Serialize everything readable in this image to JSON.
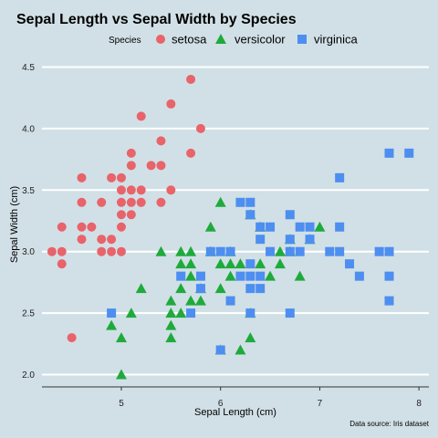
{
  "chart_data": {
    "type": "scatter",
    "title": "Sepal Length vs Sepal Width by Species",
    "xlabel": "Sepal Length (cm)",
    "ylabel": "Sepal Width (cm)",
    "caption": "Data source: Iris dataset",
    "legend_title": "Species",
    "legend_position": "top",
    "xlim": [
      4.2,
      8.1
    ],
    "ylim": [
      1.9,
      4.6
    ],
    "x_ticks": [
      5,
      6,
      7,
      8
    ],
    "y_ticks": [
      2.0,
      2.5,
      3.0,
      3.5,
      4.0,
      4.5
    ],
    "x_tick_labels": [
      "5",
      "6",
      "7",
      "8"
    ],
    "y_tick_labels": [
      "2.0",
      "2.5",
      "3.0",
      "3.5",
      "4.0",
      "4.5"
    ],
    "grid": "horizontal major",
    "series": [
      {
        "name": "setosa",
        "shape": "circle",
        "color": "#e8636a",
        "points": [
          [
            4.3,
            3.0
          ],
          [
            4.4,
            2.9
          ],
          [
            4.4,
            3.0
          ],
          [
            4.4,
            3.2
          ],
          [
            4.5,
            2.3
          ],
          [
            4.6,
            3.1
          ],
          [
            4.6,
            3.2
          ],
          [
            4.6,
            3.4
          ],
          [
            4.6,
            3.6
          ],
          [
            4.7,
            3.2
          ],
          [
            4.8,
            3.0
          ],
          [
            4.8,
            3.1
          ],
          [
            4.8,
            3.4
          ],
          [
            4.9,
            3.0
          ],
          [
            4.9,
            3.1
          ],
          [
            4.9,
            3.6
          ],
          [
            5.0,
            3.0
          ],
          [
            5.0,
            3.2
          ],
          [
            5.0,
            3.3
          ],
          [
            5.0,
            3.4
          ],
          [
            5.0,
            3.5
          ],
          [
            5.0,
            3.6
          ],
          [
            5.1,
            3.3
          ],
          [
            5.1,
            3.4
          ],
          [
            5.1,
            3.5
          ],
          [
            5.1,
            3.7
          ],
          [
            5.1,
            3.8
          ],
          [
            5.2,
            3.4
          ],
          [
            5.2,
            3.5
          ],
          [
            5.2,
            4.1
          ],
          [
            5.3,
            3.7
          ],
          [
            5.4,
            3.4
          ],
          [
            5.4,
            3.7
          ],
          [
            5.4,
            3.9
          ],
          [
            5.5,
            3.5
          ],
          [
            5.5,
            4.2
          ],
          [
            5.7,
            3.8
          ],
          [
            5.7,
            4.4
          ],
          [
            5.8,
            4.0
          ]
        ]
      },
      {
        "name": "versicolor",
        "shape": "triangle",
        "color": "#1faa3c",
        "points": [
          [
            4.9,
            2.4
          ],
          [
            5.0,
            2.0
          ],
          [
            5.0,
            2.3
          ],
          [
            5.1,
            2.5
          ],
          [
            5.2,
            2.7
          ],
          [
            5.4,
            3.0
          ],
          [
            5.5,
            2.3
          ],
          [
            5.5,
            2.4
          ],
          [
            5.5,
            2.5
          ],
          [
            5.5,
            2.6
          ],
          [
            5.6,
            2.5
          ],
          [
            5.6,
            2.7
          ],
          [
            5.6,
            2.9
          ],
          [
            5.6,
            3.0
          ],
          [
            5.7,
            2.6
          ],
          [
            5.7,
            2.8
          ],
          [
            5.7,
            2.9
          ],
          [
            5.7,
            3.0
          ],
          [
            5.8,
            2.6
          ],
          [
            5.8,
            2.7
          ],
          [
            5.9,
            3.0
          ],
          [
            5.9,
            3.2
          ],
          [
            6.0,
            2.2
          ],
          [
            6.0,
            2.7
          ],
          [
            6.0,
            2.9
          ],
          [
            6.0,
            3.4
          ],
          [
            6.1,
            2.8
          ],
          [
            6.1,
            2.9
          ],
          [
            6.1,
            3.0
          ],
          [
            6.2,
            2.2
          ],
          [
            6.2,
            2.9
          ],
          [
            6.3,
            2.3
          ],
          [
            6.3,
            2.5
          ],
          [
            6.3,
            3.3
          ],
          [
            6.4,
            2.9
          ],
          [
            6.4,
            3.2
          ],
          [
            6.5,
            2.8
          ],
          [
            6.6,
            2.9
          ],
          [
            6.6,
            3.0
          ],
          [
            6.7,
            3.0
          ],
          [
            6.7,
            3.1
          ],
          [
            6.8,
            2.8
          ],
          [
            6.9,
            3.1
          ],
          [
            7.0,
            3.2
          ]
        ]
      },
      {
        "name": "virginica",
        "shape": "square",
        "color": "#4d8ef0",
        "points": [
          [
            4.9,
            2.5
          ],
          [
            5.6,
            2.8
          ],
          [
            5.7,
            2.5
          ],
          [
            5.8,
            2.7
          ],
          [
            5.8,
            2.8
          ],
          [
            5.9,
            3.0
          ],
          [
            6.0,
            2.2
          ],
          [
            6.0,
            3.0
          ],
          [
            6.1,
            2.6
          ],
          [
            6.1,
            3.0
          ],
          [
            6.2,
            2.8
          ],
          [
            6.2,
            3.4
          ],
          [
            6.3,
            2.5
          ],
          [
            6.3,
            2.7
          ],
          [
            6.3,
            2.8
          ],
          [
            6.3,
            2.9
          ],
          [
            6.3,
            3.3
          ],
          [
            6.3,
            3.4
          ],
          [
            6.4,
            2.7
          ],
          [
            6.4,
            2.8
          ],
          [
            6.4,
            3.1
          ],
          [
            6.4,
            3.2
          ],
          [
            6.5,
            3.0
          ],
          [
            6.5,
            3.2
          ],
          [
            6.7,
            2.5
          ],
          [
            6.7,
            3.0
          ],
          [
            6.7,
            3.1
          ],
          [
            6.7,
            3.3
          ],
          [
            6.8,
            3.0
          ],
          [
            6.8,
            3.2
          ],
          [
            6.9,
            3.1
          ],
          [
            6.9,
            3.2
          ],
          [
            7.1,
            3.0
          ],
          [
            7.2,
            3.0
          ],
          [
            7.2,
            3.2
          ],
          [
            7.2,
            3.6
          ],
          [
            7.3,
            2.9
          ],
          [
            7.4,
            2.8
          ],
          [
            7.6,
            3.0
          ],
          [
            7.7,
            2.6
          ],
          [
            7.7,
            2.8
          ],
          [
            7.7,
            3.0
          ],
          [
            7.7,
            3.8
          ],
          [
            7.9,
            3.8
          ]
        ]
      }
    ]
  }
}
